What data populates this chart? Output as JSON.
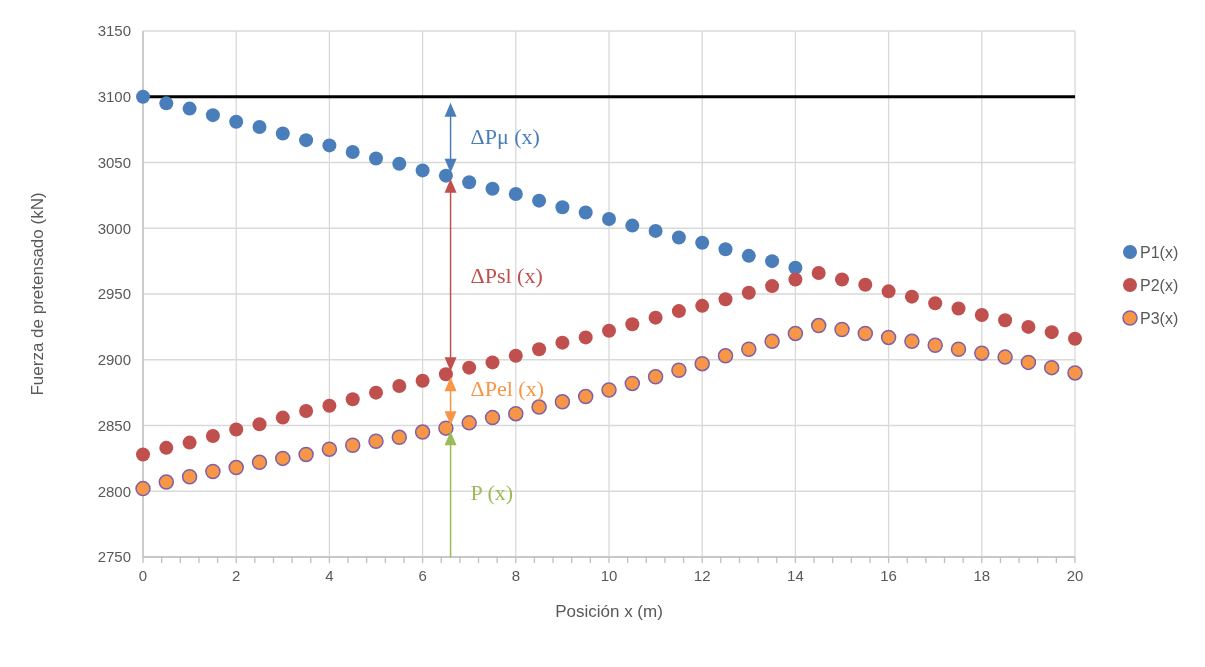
{
  "chart_data": {
    "type": "scatter",
    "xlabel": "Posición x (m)",
    "ylabel": "Fuerza de pretensado (kN)",
    "x": [
      0,
      0.5,
      1,
      1.5,
      2,
      2.5,
      3,
      3.5,
      4,
      4.5,
      5,
      5.5,
      6,
      6.5,
      7,
      7.5,
      8,
      8.5,
      9,
      9.5,
      10,
      10.5,
      11,
      11.5,
      12,
      12.5,
      13,
      13.5,
      14,
      14.5,
      15,
      15.5,
      16,
      16.5,
      17,
      17.5,
      18,
      18.5,
      19,
      19.5,
      20
    ],
    "series": [
      {
        "name": "P1(x)",
        "color": "#4a7ebb",
        "values": [
          3100,
          3095,
          3091,
          3086,
          3081,
          3077,
          3072,
          3067,
          3063,
          3058,
          3053,
          3049,
          3044,
          3040,
          3035,
          3030,
          3026,
          3021,
          3016,
          3012,
          3007,
          3002,
          2998,
          2993,
          2989,
          2984,
          2979,
          2975,
          2970,
          null,
          null,
          null,
          null,
          null,
          null,
          null,
          null,
          null,
          null,
          null,
          null
        ]
      },
      {
        "name": "P2(x)",
        "color": "#c0504d",
        "values": [
          2828,
          2833,
          2837,
          2842,
          2847,
          2851,
          2856,
          2861,
          2865,
          2870,
          2875,
          2880,
          2884,
          2889,
          2894,
          2898,
          2903,
          2908,
          2913,
          2917,
          2922,
          2927,
          2932,
          2937,
          2941,
          2946,
          2951,
          2956,
          2961,
          2966,
          2961,
          2957,
          2952,
          2948,
          2943,
          2939,
          2934,
          2930,
          2925,
          2921,
          2916
        ]
      },
      {
        "name": "P3(x)",
        "color": "#f79646",
        "values": [
          2802,
          2807,
          2811,
          2815,
          2818,
          2822,
          2825,
          2828,
          2832,
          2835,
          2838,
          2841,
          2845,
          2848,
          2852,
          2856,
          2859,
          2864,
          2868,
          2872,
          2877,
          2882,
          2887,
          2892,
          2897,
          2903,
          2908,
          2914,
          2920,
          2926,
          2923,
          2920,
          2917,
          2914,
          2911,
          2908,
          2905,
          2902,
          2898,
          2894,
          2890
        ]
      }
    ],
    "ref_lines": [
      {
        "axis": "y",
        "value": 3100,
        "color": "#000000"
      }
    ],
    "annotations": [
      "ΔPμ (x)",
      "ΔPsl (x)",
      "ΔPel (x)",
      "P (x)"
    ],
    "xlim": [
      0,
      20
    ],
    "xticks": [
      0,
      {
        "value": 0.4,
        "label": null
      },
      {
        "value": 0.8,
        "label": null
      },
      {
        "value": 1.2,
        "label": null
      },
      {
        "value": 1.6,
        "label": null
      },
      2,
      {
        "value": 2.4,
        "label": null
      },
      {
        "value": 2.8,
        "label": null
      },
      {
        "value": 3.2,
        "label": null
      },
      {
        "value": 3.6,
        "label": null
      },
      4,
      {
        "value": 4.4,
        "label": null
      },
      {
        "value": 4.8,
        "label": null
      },
      {
        "value": 5.2,
        "label": null
      },
      {
        "value": 5.6,
        "label": null
      },
      6,
      {
        "value": 6.4,
        "label": null
      },
      {
        "value": 6.8,
        "label": null
      },
      {
        "value": 7.2,
        "label": null
      },
      {
        "value": 7.6,
        "label": null
      },
      8,
      {
        "value": 8.4,
        "label": null
      },
      {
        "value": 8.8,
        "label": null
      },
      {
        "value": 9.2,
        "label": null
      },
      {
        "value": 9.6,
        "label": null
      },
      10,
      {
        "value": 10.4,
        "label": null
      },
      {
        "value": 10.8,
        "label": null
      },
      {
        "value": 11.2,
        "label": null
      },
      {
        "value": 11.6,
        "label": null
      },
      12,
      {
        "value": 12.4,
        "label": null
      },
      {
        "value": 12.8,
        "label": null
      },
      {
        "value": 13.2,
        "label": null
      },
      {
        "value": 13.6,
        "label": null
      },
      14,
      {
        "value": 14.4,
        "label": null
      },
      {
        "value": 14.8,
        "label": null
      },
      {
        "value": 15.2,
        "label": null
      },
      {
        "value": 15.6,
        "label": null
      },
      16,
      {
        "value": 16.4,
        "label": null
      },
      {
        "value": 16.8,
        "label": null
      },
      {
        "value": 17.2,
        "label": null
      },
      {
        "value": 17.6,
        "label": null
      },
      18,
      {
        "value": 18.4,
        "label": null
      },
      {
        "value": 18.8,
        "label": null
      },
      {
        "value": 19.2,
        "label": null
      },
      {
        "value": 19.6,
        "label": null
      },
      20
    ],
    "ylim": [
      2750,
      3150
    ],
    "yticks": [
      2750,
      2800,
      2850,
      2900,
      2950,
      3000,
      3050,
      3100,
      3150
    ],
    "grid": true,
    "legend": "right",
    "marker": "circle"
  }
}
